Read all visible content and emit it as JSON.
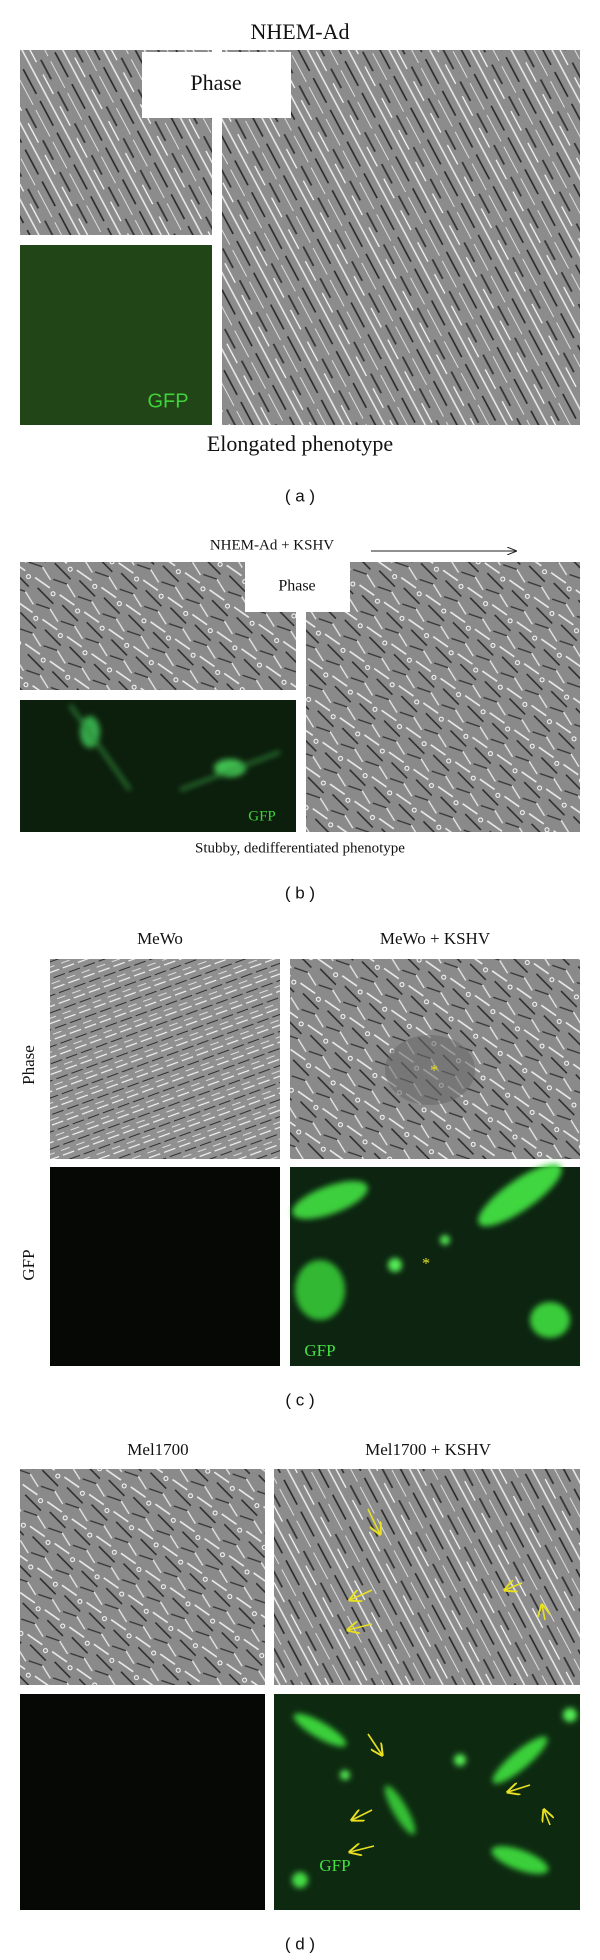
{
  "panels": [
    {
      "label": "( a )",
      "title": "NHEM-Ad",
      "overlays": [
        "Phase",
        "GFP"
      ],
      "caption": "Elongated phenotype"
    },
    {
      "label": "( b )",
      "title": "NHEM-Ad + KSHV",
      "overlays": [
        "Phase",
        "GFP"
      ],
      "caption": "Stubby, dedifferentiated phenotype"
    },
    {
      "label": "( c )",
      "column_titles": [
        "MeWo",
        "MeWo + KSHV"
      ],
      "row_labels": [
        "Phase",
        "GFP"
      ],
      "annotations": [
        "*",
        "*",
        "GFP"
      ]
    },
    {
      "label": "( d )",
      "column_titles": [
        "Mel1700",
        "Mel1700 + KSHV"
      ],
      "annotations": [
        "GFP"
      ]
    }
  ]
}
